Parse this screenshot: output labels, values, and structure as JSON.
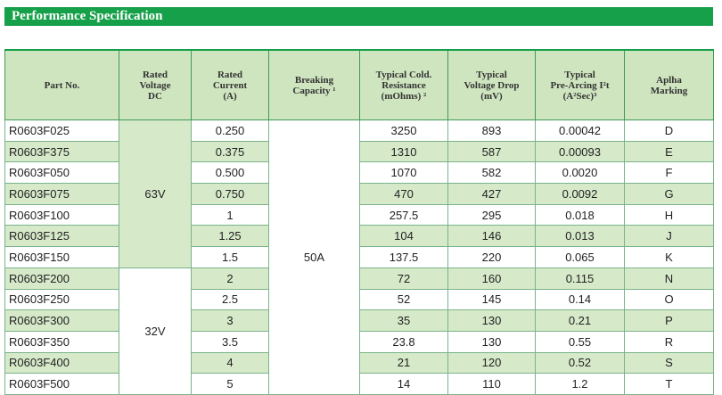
{
  "title": "Performance Specification",
  "table": {
    "columns": [
      {
        "lines": [
          "Part No."
        ]
      },
      {
        "lines": [
          "Rated",
          "Voltage",
          "DC"
        ]
      },
      {
        "lines": [
          "Rated",
          "Current",
          "(A)"
        ]
      },
      {
        "lines": [
          "Breaking",
          "Capacity ¹"
        ]
      },
      {
        "lines": [
          "Typical Cold.",
          "Resistance",
          "(mOhms) ²"
        ]
      },
      {
        "lines": [
          "Typical",
          "Voltage Drop",
          "(mV)"
        ]
      },
      {
        "lines": [
          "Typical",
          "Pre-Arcing I²t",
          "(A²Sec)³"
        ]
      },
      {
        "lines": [
          "Aplha",
          "Marking"
        ]
      }
    ],
    "capacity": "50A",
    "groups": [
      {
        "voltage": "63V",
        "rows": [
          [
            "R0603F025",
            "0.250",
            "3250",
            "893",
            "0.00042",
            "D"
          ],
          [
            "R0603F375",
            "0.375",
            "1310",
            "587",
            "0.00093",
            "E"
          ],
          [
            "R0603F050",
            "0.500",
            "1070",
            "582",
            "0.0020",
            "F"
          ],
          [
            "R0603F075",
            "0.750",
            "470",
            "427",
            "0.0092",
            "G"
          ],
          [
            "R0603F100",
            "1",
            "257.5",
            "295",
            "0.018",
            "H"
          ],
          [
            "R0603F125",
            "1.25",
            "104",
            "146",
            "0.013",
            "J"
          ],
          [
            "R0603F150",
            "1.5",
            "137.5",
            "220",
            "0.065",
            "K"
          ]
        ]
      },
      {
        "voltage": "32V",
        "rows": [
          [
            "R0603F200",
            "2",
            "72",
            "160",
            "0.115",
            "N"
          ],
          [
            "R0603F250",
            "2.5",
            "52",
            "145",
            "0.14",
            "O"
          ],
          [
            "R0603F300",
            "3",
            "35",
            "130",
            "0.21",
            "P"
          ],
          [
            "R0603F350",
            "3.5",
            "23.8",
            "130",
            "0.55",
            "R"
          ],
          [
            "R0603F400",
            "4",
            "21",
            "120",
            "0.52",
            "S"
          ],
          [
            "R0603F500",
            "5",
            "14",
            "110",
            "1.2",
            "T"
          ]
        ]
      }
    ]
  }
}
